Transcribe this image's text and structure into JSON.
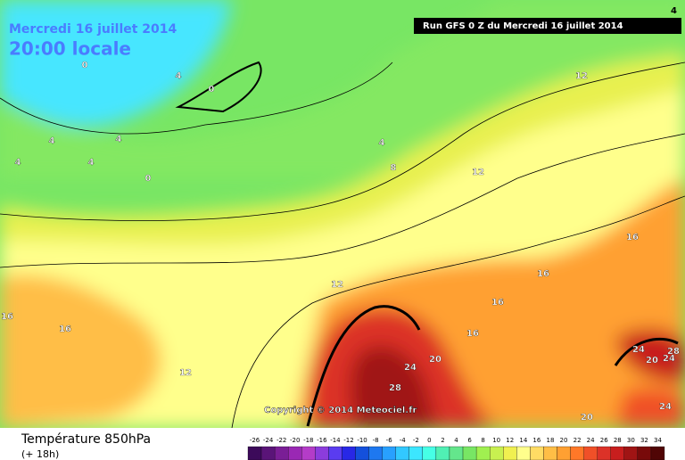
{
  "header": {
    "date": "Mercredi 16 juillet 2014",
    "time": "20:00 locale"
  },
  "run_label": "Run GFS 0 Z du Mercredi 16 juillet 2014",
  "corner_value": 4,
  "copyright": "Copyright © 2014 Meteociel.fr",
  "legend": {
    "title": "Température 850hPa",
    "subtitle": "(+ 18h)",
    "ticks": [
      -26,
      -24,
      -22,
      -20,
      -18,
      -16,
      -14,
      -12,
      -10,
      -8,
      -6,
      -4,
      -2,
      0,
      2,
      4,
      6,
      8,
      10,
      12,
      14,
      16,
      18,
      20,
      22,
      24,
      26,
      28,
      30,
      32,
      34
    ],
    "colors": [
      "#3c0a5a",
      "#5a1478",
      "#7a1e96",
      "#9a28b4",
      "#b43cc8",
      "#8c3cdc",
      "#5a3cf0",
      "#2828e6",
      "#1450dc",
      "#1e78f0",
      "#28a0ff",
      "#32c8ff",
      "#3ce6ff",
      "#46ffe6",
      "#50f0b4",
      "#64e68c",
      "#78e664",
      "#a0f050",
      "#c8f050",
      "#f0f050",
      "#ffff8c",
      "#ffdc64",
      "#ffbe46",
      "#ffa032",
      "#ff7828",
      "#f05028",
      "#dc3228",
      "#c81e1e",
      "#a01414",
      "#780a0a",
      "#500505"
    ]
  },
  "contour_labels": [
    0,
    4,
    0,
    12,
    4,
    4,
    4,
    4,
    4,
    8,
    0,
    12,
    16,
    16,
    12,
    16,
    16,
    16,
    16,
    24,
    28,
    20,
    24,
    20,
    24,
    12,
    28,
    24,
    20
  ]
}
